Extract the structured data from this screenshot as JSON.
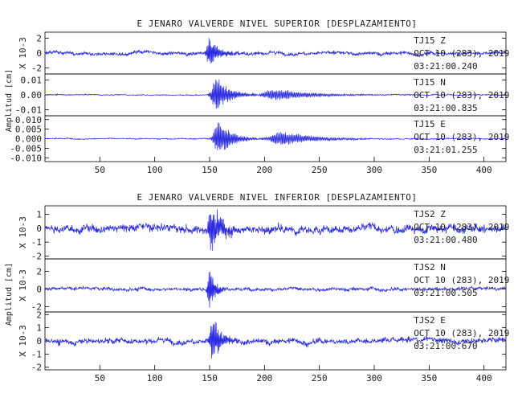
{
  "colors": {
    "trace": "#2a2ae0",
    "axes": "#000000",
    "text": "#222222"
  },
  "chart_data": [
    {
      "type": "line",
      "title": "E JENARO VALVERDE NIVEL SUPERIOR [DESPLAZAMIENTO]",
      "ylabel": "Amplitud [cm]",
      "xlim": [
        0,
        420
      ],
      "xticks": [
        "50",
        "100",
        "150",
        "200",
        "250",
        "300",
        "350",
        "400"
      ],
      "channels": [
        {
          "name": "TJ15 Z",
          "station": "TJ15",
          "component": "Z",
          "date": "OCT 10 (283), 2019",
          "time": "03:21:00.240",
          "scale_label": "X 10-3",
          "ylim": [
            -2.8,
            2.8
          ],
          "yticks": [
            "2",
            "0",
            "-2"
          ],
          "noise": 0.45,
          "bursts": [
            {
              "t": 150,
              "amp": 1.9,
              "w": 8,
              "f": 0.9
            }
          ]
        },
        {
          "name": "TJ15 N",
          "station": "TJ15",
          "component": "N",
          "date": "OCT 10 (283), 2019",
          "time": "03:21:00.835",
          "scale_label": "",
          "ylim": [
            -0.014,
            0.014
          ],
          "yticks": [
            "0.01",
            "0.00",
            "-0.01"
          ],
          "noise": 0.0006,
          "bursts": [
            {
              "t": 156,
              "amp": 0.011,
              "w": 12,
              "f": 0.8
            },
            {
              "t": 210,
              "amp": 0.0035,
              "w": 35,
              "f": 0.7
            }
          ]
        },
        {
          "name": "TJ15 E",
          "station": "TJ15",
          "component": "E",
          "date": "OCT 10 (283), 2019",
          "time": "03:21:01.255",
          "scale_label": "",
          "ylim": [
            -0.012,
            0.012
          ],
          "yticks": [
            "0.010",
            "0.005",
            "0.000",
            "-0.005",
            "-0.010"
          ],
          "noise": 0.0005,
          "bursts": [
            {
              "t": 158,
              "amp": 0.009,
              "w": 12,
              "f": 0.8
            },
            {
              "t": 215,
              "amp": 0.0035,
              "w": 30,
              "f": 0.7
            }
          ]
        }
      ]
    },
    {
      "type": "line",
      "title": "E JENARO VALVERDE NIVEL INFERIOR [DESPLAZAMIENTO]",
      "ylabel": "Amplitud [cm]",
      "xlim": [
        0,
        420
      ],
      "xticks": [
        "50",
        "100",
        "150",
        "200",
        "250",
        "300",
        "350",
        "400"
      ],
      "channels": [
        {
          "name": "TJS2 Z",
          "station": "TJS2",
          "component": "Z",
          "date": "OCT 10 (283), 2019",
          "time": "03:21:00.480",
          "scale_label": "X 10-3",
          "ylim": [
            -2.2,
            1.6
          ],
          "yticks": [
            "1",
            "0",
            "-1",
            "-2"
          ],
          "noise": 0.55,
          "bursts": [
            {
              "t": 152,
              "amp": 1.6,
              "w": 10,
              "f": 0.9
            }
          ]
        },
        {
          "name": "TJS2 N",
          "station": "TJS2",
          "component": "N",
          "date": "OCT 10 (283), 2019",
          "time": "03:21:00.505",
          "scale_label": "X 10-3",
          "ylim": [
            -2.6,
            3.4
          ],
          "yticks": [
            "2",
            "0",
            "-2"
          ],
          "noise": 0.35,
          "bursts": [
            {
              "t": 150,
              "amp": 2.6,
              "w": 5,
              "f": 1.0
            }
          ]
        },
        {
          "name": "TJS2 E",
          "station": "TJS2",
          "component": "E",
          "date": "OCT 10 (283), 2019",
          "time": "03:21:00.670",
          "scale_label": "X 10-3",
          "ylim": [
            -2.2,
            2.2
          ],
          "yticks": [
            "2",
            "1",
            "0",
            "-1",
            "-2"
          ],
          "noise": 0.4,
          "bursts": [
            {
              "t": 153,
              "amp": 1.6,
              "w": 8,
              "f": 0.9
            }
          ]
        }
      ]
    }
  ]
}
